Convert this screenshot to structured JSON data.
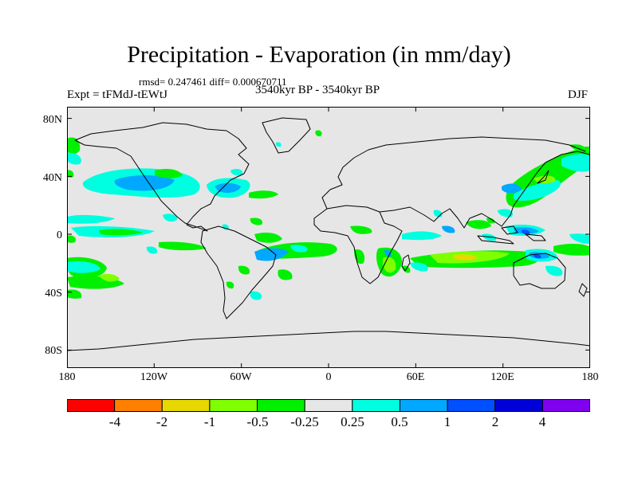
{
  "title": "Precipitation - Evaporation (in mm/day)",
  "stats": "rmsd= 0.247461 diff= 0.000670711",
  "experiment": "Expt = tFMdJ-tEWtJ",
  "period": "3540kyr BP - 3540kyr BP",
  "season": "DJF",
  "lat_labels": [
    "80N",
    "40N",
    "0",
    "40S",
    "80S"
  ],
  "lon_labels": [
    "180",
    "120W",
    "60W",
    "0",
    "60E",
    "120E",
    "180"
  ],
  "colorbar": {
    "colors": [
      "#ff0000",
      "#ff8000",
      "#e6d800",
      "#80ff00",
      "#00f000",
      "#e6e6e6",
      "#00ffe0",
      "#00a8ff",
      "#0050ff",
      "#0000d8",
      "#8000f0"
    ],
    "labels": [
      "-4",
      "-2",
      "-1",
      "-0.5",
      "-0.25",
      "0.25",
      "0.5",
      "1",
      "2",
      "4"
    ]
  }
}
